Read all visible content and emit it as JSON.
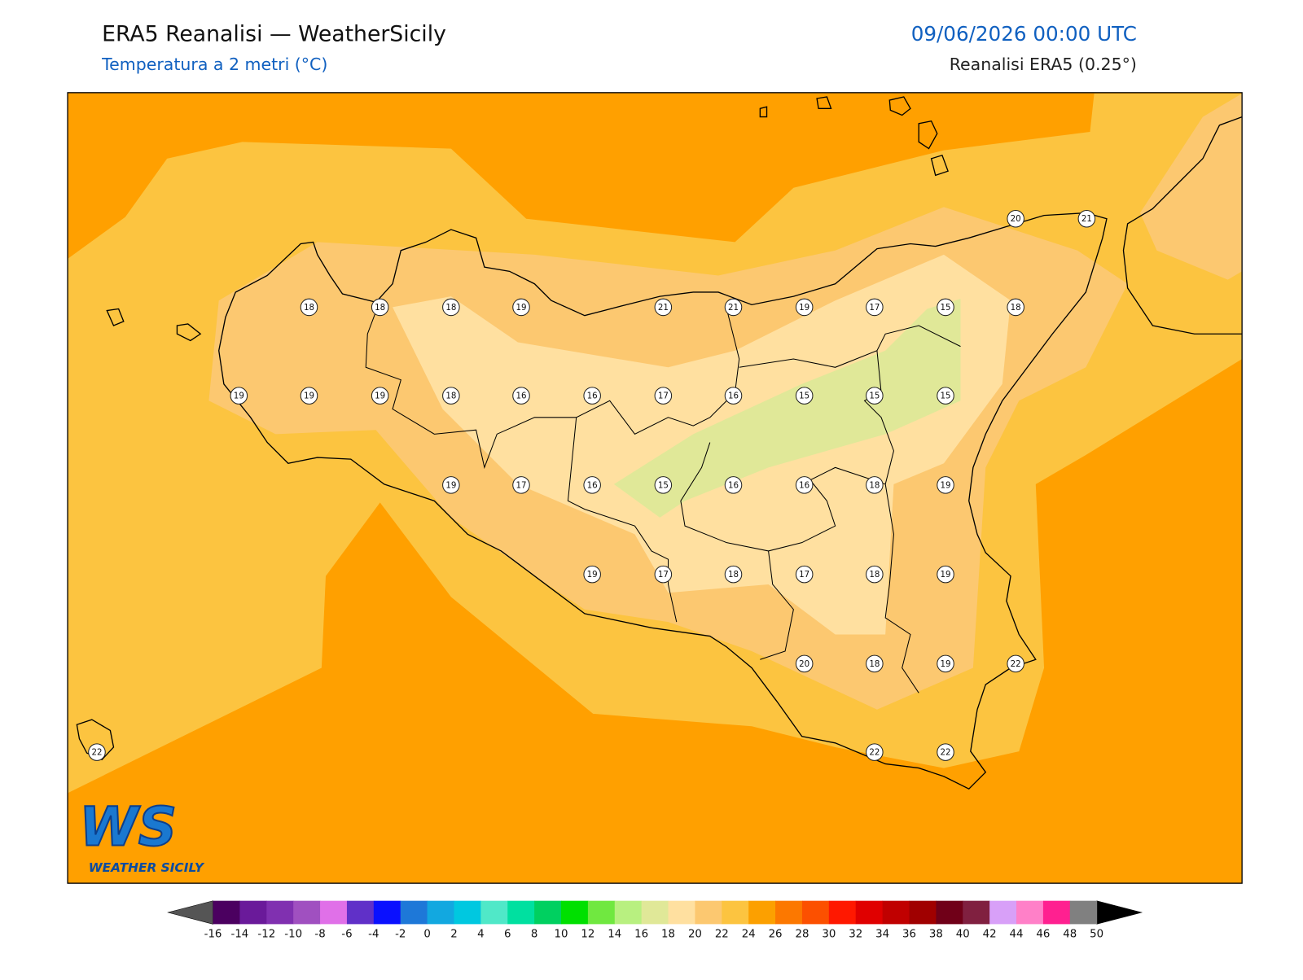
{
  "header": {
    "title": "ERA5 Reanalisi — WeatherSicily",
    "subtitle": "Temperatura a 2 metri (°C)",
    "datetime": "09/06/2026 00:00 UTC",
    "source": "Reanalisi ERA5 (0.25°)"
  },
  "stations": [
    20,
    21,
    18,
    18,
    18,
    19,
    21,
    21,
    19,
    17,
    15,
    18,
    19,
    19,
    19,
    18,
    16,
    16,
    17,
    16,
    15,
    15,
    15,
    19,
    17,
    16,
    15,
    16,
    16,
    18,
    19,
    19,
    17,
    18,
    17,
    18,
    19,
    20,
    18,
    19,
    22,
    22,
    22,
    22
  ],
  "colorbar": {
    "ticks": [
      -16,
      -14,
      -12,
      -10,
      -8,
      -6,
      -4,
      -2,
      0,
      2,
      4,
      6,
      8,
      10,
      12,
      14,
      16,
      18,
      20,
      22,
      24,
      26,
      28,
      30,
      32,
      34,
      36,
      38,
      40,
      42,
      44,
      46,
      48,
      50
    ],
    "colors": [
      "#4b0060",
      "#6a1a9a",
      "#8030b0",
      "#a050c0",
      "#e070e8",
      "#6030c8",
      "#0a10ff",
      "#1e78d8",
      "#12a8e0",
      "#00c8e0",
      "#50e8c8",
      "#00e0a0",
      "#00d060",
      "#00e000",
      "#70e840",
      "#b8f080",
      "#e0e898",
      "#ffe0a0",
      "#fcc870",
      "#fcc440",
      "#fca000",
      "#fc7800",
      "#fc5000",
      "#ff1800",
      "#e00000",
      "#c00000",
      "#a00000",
      "#700018",
      "#802040",
      "#d8a0f8",
      "#ff80c8",
      "#ff2090",
      "#808080"
    ],
    "under_color": "#555555",
    "over_color": "#000000"
  },
  "logo": {
    "mark": "WS",
    "text": "WEATHER SICILY"
  }
}
